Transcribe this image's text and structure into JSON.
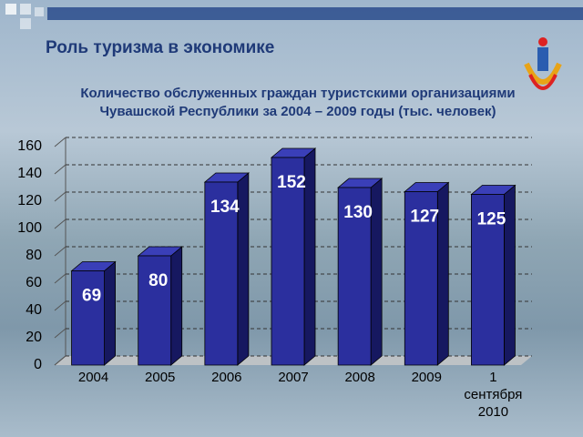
{
  "chart_data": {
    "type": "bar3d",
    "title": "Роль туризма в экономике",
    "subtitle": [
      "Количество обслуженных граждан туристскими организациями",
      "Чувашской Республики за 2004 – 2009 годы (тыс. человек)"
    ],
    "categories": [
      "2004",
      "2005",
      "2006",
      "2007",
      "2008",
      "2009",
      "1 сентября 2010"
    ],
    "values": [
      69,
      80,
      134,
      152,
      130,
      127,
      125
    ],
    "color": "#2b2f9e",
    "ylim": [
      0,
      160
    ],
    "yticks": [
      0,
      20,
      40,
      60,
      80,
      100,
      120,
      140,
      160
    ],
    "grid": true
  }
}
